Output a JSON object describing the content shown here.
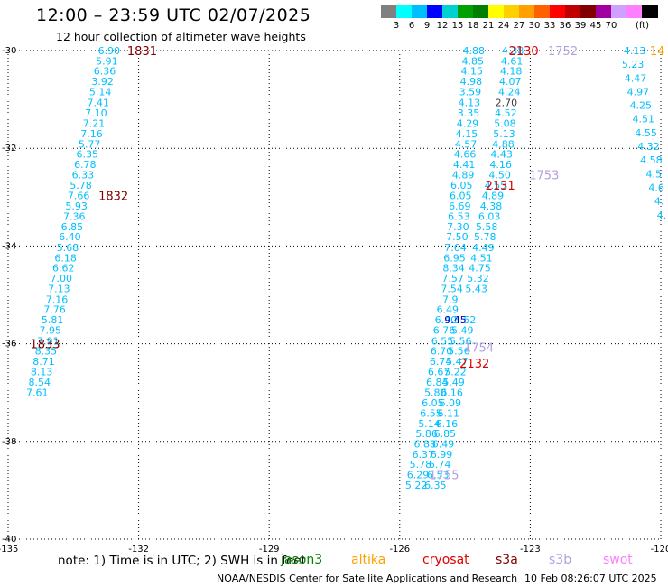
{
  "header": {
    "title": "12:00 – 23:59 UTC 02/07/2025",
    "subtitle": "12 hour collection of altimeter wave heights"
  },
  "colorbar": {
    "unit": "(ft)",
    "labels": [
      "3",
      "6",
      "9",
      "12",
      "15",
      "18",
      "21",
      "24",
      "27",
      "30",
      "33",
      "36",
      "39",
      "45",
      "70"
    ],
    "colors": [
      "#808080",
      "#00ffff",
      "#00bfff",
      "#0000ff",
      "#00d0d0",
      "#00a000",
      "#008000",
      "#ffff00",
      "#ffd000",
      "#ffa000",
      "#ff6000",
      "#ff0000",
      "#c00000",
      "#800000",
      "#a000a0",
      "#d0a0ff",
      "#ff80ff",
      "#000000"
    ]
  },
  "colors": {
    "cyan": "#00bfff",
    "blue": "#0000c8",
    "gray": "#404040",
    "dark_red": "#800000",
    "red": "#e00000",
    "lavender": "#b4a0e0",
    "orange": "#ffa000"
  },
  "chart_data": {
    "type": "scatter",
    "title": "12:00 – 23:59 UTC 02/07/2025",
    "subtitle": "12 hour collection of altimeter wave heights",
    "xlim": [
      -135,
      -120
    ],
    "ylim": [
      -40,
      -30
    ],
    "xticks": [
      "-135",
      "-132",
      "-129",
      "-126",
      "-123",
      "-120"
    ],
    "yticks": [
      "-30",
      "-32",
      "-34",
      "-36",
      "-38",
      "-40"
    ],
    "grid": "dotted",
    "tracks": [
      {
        "color": "#00bfff",
        "points": [
          [
            -132.68,
            -30.0,
            "6.90"
          ],
          [
            -132.73,
            -30.21,
            "5.91"
          ],
          [
            -132.78,
            -30.42,
            "6.36"
          ],
          [
            -132.83,
            -30.63,
            "3.92"
          ],
          [
            -132.88,
            -30.84,
            "5.14"
          ],
          [
            -132.93,
            -31.06,
            "7.41"
          ],
          [
            -132.98,
            -31.28,
            "7.10"
          ],
          [
            -133.03,
            -31.49,
            "7.21"
          ],
          [
            -133.08,
            -31.7,
            "7.16"
          ],
          [
            -133.13,
            -31.91,
            "5.77"
          ],
          [
            -133.18,
            -32.12,
            "6.35"
          ],
          [
            -133.23,
            -32.33,
            "6.78"
          ],
          [
            -133.28,
            -32.54,
            "6.33"
          ],
          [
            -133.33,
            -32.75,
            "5.78"
          ],
          [
            -133.38,
            -32.97,
            "7.66"
          ],
          [
            -133.43,
            -33.18,
            "5.93"
          ],
          [
            -133.48,
            -33.39,
            "7.36"
          ],
          [
            -133.53,
            -33.6,
            "6.85"
          ],
          [
            -133.58,
            -33.81,
            "6.40"
          ],
          [
            -133.63,
            -34.03,
            "5.68"
          ],
          [
            -133.68,
            -34.24,
            "6.18"
          ],
          [
            -133.73,
            -34.45,
            "6.62"
          ],
          [
            -133.78,
            -34.66,
            "7.00"
          ],
          [
            -133.83,
            -34.87,
            "7.13"
          ],
          [
            -133.88,
            -35.09,
            "7.16"
          ],
          [
            -133.93,
            -35.3,
            "7.76"
          ],
          [
            -133.98,
            -35.51,
            "5.81"
          ],
          [
            -134.03,
            -35.72,
            "7.95"
          ],
          [
            -134.08,
            -35.94,
            "7.91"
          ],
          [
            -134.13,
            -36.15,
            "8.35"
          ],
          [
            -134.18,
            -36.36,
            "8.71"
          ],
          [
            -134.23,
            -36.57,
            "8.13"
          ],
          [
            -134.28,
            -36.78,
            "8.54"
          ],
          [
            -134.33,
            -37.0,
            "7.61"
          ]
        ]
      },
      {
        "color": "#00bfff",
        "points": [
          [
            -124.3,
            -30.0,
            "4.88"
          ],
          [
            -124.32,
            -30.21,
            "4.85"
          ],
          [
            -124.34,
            -30.42,
            "4.15"
          ],
          [
            -124.36,
            -30.63,
            "4.98"
          ],
          [
            -124.38,
            -30.84,
            "3.59"
          ],
          [
            -124.4,
            -31.06,
            "4.13"
          ],
          [
            -124.42,
            -31.28,
            "3.35"
          ],
          [
            -124.44,
            -31.49,
            "4.29"
          ],
          [
            -124.46,
            -31.7,
            "4.15"
          ],
          [
            -124.48,
            -31.91,
            "4.57"
          ],
          [
            -124.5,
            -32.12,
            "4.66"
          ],
          [
            -124.52,
            -32.33,
            "4.41"
          ],
          [
            -124.54,
            -32.54,
            "4.89"
          ],
          [
            -124.58,
            -32.75,
            "6.05"
          ],
          [
            -124.6,
            -32.97,
            "6.05"
          ],
          [
            -124.62,
            -33.18,
            "6.69"
          ],
          [
            -124.64,
            -33.39,
            "6.53"
          ],
          [
            -124.66,
            -33.6,
            "7.30"
          ],
          [
            -124.68,
            -33.81,
            "7.50"
          ],
          [
            -124.72,
            -34.03,
            "7.64"
          ],
          [
            -124.74,
            -34.24,
            "6.95"
          ],
          [
            -124.76,
            -34.45,
            "8.34"
          ],
          [
            -124.78,
            -34.66,
            "7.57"
          ],
          [
            -124.8,
            -34.87,
            "7.54"
          ],
          [
            -124.84,
            -35.09,
            "7.9"
          ],
          [
            -124.9,
            -35.3,
            "6.49"
          ],
          [
            -124.94,
            -35.51,
            "6.40"
          ],
          [
            -124.98,
            -35.72,
            "6.76"
          ],
          [
            -125.02,
            -35.94,
            "6.55"
          ],
          [
            -125.04,
            -36.15,
            "6.70"
          ],
          [
            -125.06,
            -36.36,
            "6.74"
          ],
          [
            -125.1,
            -36.57,
            "6.67"
          ],
          [
            -125.14,
            -36.78,
            "6.84"
          ],
          [
            -125.18,
            -37.0,
            "5.80"
          ],
          [
            -125.24,
            -37.21,
            "6.05"
          ],
          [
            -125.28,
            -37.42,
            "6.55"
          ],
          [
            -125.32,
            -37.63,
            "5.14"
          ],
          [
            -125.38,
            -37.84,
            "5.86"
          ],
          [
            -125.42,
            -38.05,
            "6.88"
          ],
          [
            -125.46,
            -38.26,
            "6.37"
          ],
          [
            -125.52,
            -38.47,
            "5.78"
          ],
          [
            -125.58,
            -38.68,
            "6.29"
          ],
          [
            -125.62,
            -38.89,
            "5.22"
          ]
        ]
      },
      {
        "color": "#00bfff",
        "points": [
          [
            -123.4,
            -30.0,
            "4.38"
          ],
          [
            -123.42,
            -30.21,
            "4.61"
          ],
          [
            -123.44,
            -30.42,
            "4.18"
          ],
          [
            -123.46,
            -30.63,
            "4.07"
          ],
          [
            -123.48,
            -30.84,
            "4.24"
          ],
          [
            -123.56,
            -31.28,
            "4.52"
          ],
          [
            -123.58,
            -31.49,
            "5.08"
          ],
          [
            -123.6,
            -31.7,
            "5.13"
          ],
          [
            -123.62,
            -31.91,
            "4.88"
          ],
          [
            -123.66,
            -32.12,
            "4.43"
          ],
          [
            -123.68,
            -32.33,
            "4.16"
          ],
          [
            -123.7,
            -32.54,
            "4.50"
          ],
          [
            -123.8,
            -32.75,
            "4.55"
          ],
          [
            -123.86,
            -32.97,
            "4.89"
          ],
          [
            -123.9,
            -33.18,
            "4.38"
          ],
          [
            -123.94,
            -33.39,
            "6.03"
          ],
          [
            -124.0,
            -33.6,
            "5.58"
          ],
          [
            -124.04,
            -33.81,
            "5.78"
          ],
          [
            -124.08,
            -34.03,
            "4.49"
          ],
          [
            -124.12,
            -34.24,
            "4.51"
          ],
          [
            -124.16,
            -34.45,
            "4.75"
          ],
          [
            -124.2,
            -34.66,
            "5.32"
          ],
          [
            -124.24,
            -34.87,
            "5.43"
          ],
          [
            -124.5,
            -35.51,
            "5.52"
          ],
          [
            -124.56,
            -35.72,
            "5.49"
          ],
          [
            -124.6,
            -35.94,
            "5.56"
          ],
          [
            -124.64,
            -36.15,
            "5.56"
          ],
          [
            -124.68,
            -36.36,
            "5.47"
          ],
          [
            -124.72,
            -36.57,
            "5.22"
          ],
          [
            -124.76,
            -36.78,
            "5.49"
          ],
          [
            -124.8,
            -37.0,
            "6.16"
          ],
          [
            -124.84,
            -37.21,
            "6.09"
          ],
          [
            -124.88,
            -37.42,
            "6.11"
          ],
          [
            -124.92,
            -37.63,
            "6.16"
          ],
          [
            -124.96,
            -37.84,
            "6.85"
          ],
          [
            -125.0,
            -38.05,
            "6.49"
          ],
          [
            -125.04,
            -38.26,
            "6.99"
          ],
          [
            -125.08,
            -38.47,
            "6.74"
          ],
          [
            -125.12,
            -38.68,
            "6.53"
          ],
          [
            -125.18,
            -38.89,
            "6.35"
          ]
        ]
      },
      {
        "color": "#00bfff",
        "points": [
          [
            -120.6,
            -30.0,
            "4.13"
          ],
          [
            -120.64,
            -30.28,
            "5.23"
          ],
          [
            -120.58,
            -30.56,
            "4.47"
          ],
          [
            -120.52,
            -30.84,
            "4.97"
          ],
          [
            -120.46,
            -31.12,
            "4.25"
          ],
          [
            -120.4,
            -31.4,
            "4.51"
          ],
          [
            -120.34,
            -31.68,
            "4.55"
          ],
          [
            -120.28,
            -31.96,
            "4.32"
          ],
          [
            -120.22,
            -32.24,
            "4.58"
          ],
          [
            -120.16,
            -32.52,
            "4.5"
          ],
          [
            -120.1,
            -32.8,
            "4.6"
          ],
          [
            -120.04,
            -33.08,
            "4."
          ],
          [
            -119.98,
            -33.36,
            "4."
          ]
        ]
      },
      {
        "color": "#0000c8",
        "points": [
          [
            -124.72,
            -35.51,
            "9.45"
          ]
        ]
      },
      {
        "color": "#404040",
        "points": [
          [
            -123.55,
            -31.06,
            "2.70"
          ]
        ]
      }
    ],
    "time_labels": [
      {
        "x": -131.92,
        "y": -30.0,
        "text": "1831",
        "color": "#800000"
      },
      {
        "x": -132.58,
        "y": -32.97,
        "text": "1832",
        "color": "#800000"
      },
      {
        "x": -134.15,
        "y": -36.0,
        "text": "1833",
        "color": "#800000"
      },
      {
        "x": -123.15,
        "y": -30.0,
        "text": "2130",
        "color": "#e00000"
      },
      {
        "x": -123.69,
        "y": -32.75,
        "text": "2131",
        "color": "#e00000"
      },
      {
        "x": -124.28,
        "y": -36.4,
        "text": "2132",
        "color": "#e00000"
      },
      {
        "x": -122.25,
        "y": -30.0,
        "text": "1752",
        "color": "#b4a0e0"
      },
      {
        "x": -122.68,
        "y": -32.54,
        "text": "1753",
        "color": "#b4a0e0"
      },
      {
        "x": -124.18,
        "y": -36.07,
        "text": "1754",
        "color": "#b4a0e0"
      },
      {
        "x": -124.98,
        "y": -38.68,
        "text": "1755",
        "color": "#b4a0e0"
      },
      {
        "x": -120.08,
        "y": -30.0,
        "text": "14",
        "color": "#ffa000"
      }
    ]
  },
  "footer": {
    "note": "note:  1) Time is in UTC;  2) SWH is in feet",
    "legend": [
      {
        "label": "jason3",
        "color": "#008000"
      },
      {
        "label": "altika",
        "color": "#ffa000"
      },
      {
        "label": "cryosat",
        "color": "#e00000"
      },
      {
        "label": "s3a",
        "color": "#800000"
      },
      {
        "label": "s3b",
        "color": "#b4a0e0"
      },
      {
        "label": "swot",
        "color": "#ff80ff"
      }
    ],
    "credit": "NOAA/NESDIS Center for Satellite Applications and Research",
    "timestamp": "10 Feb 08:26:07 UTC 2025"
  }
}
